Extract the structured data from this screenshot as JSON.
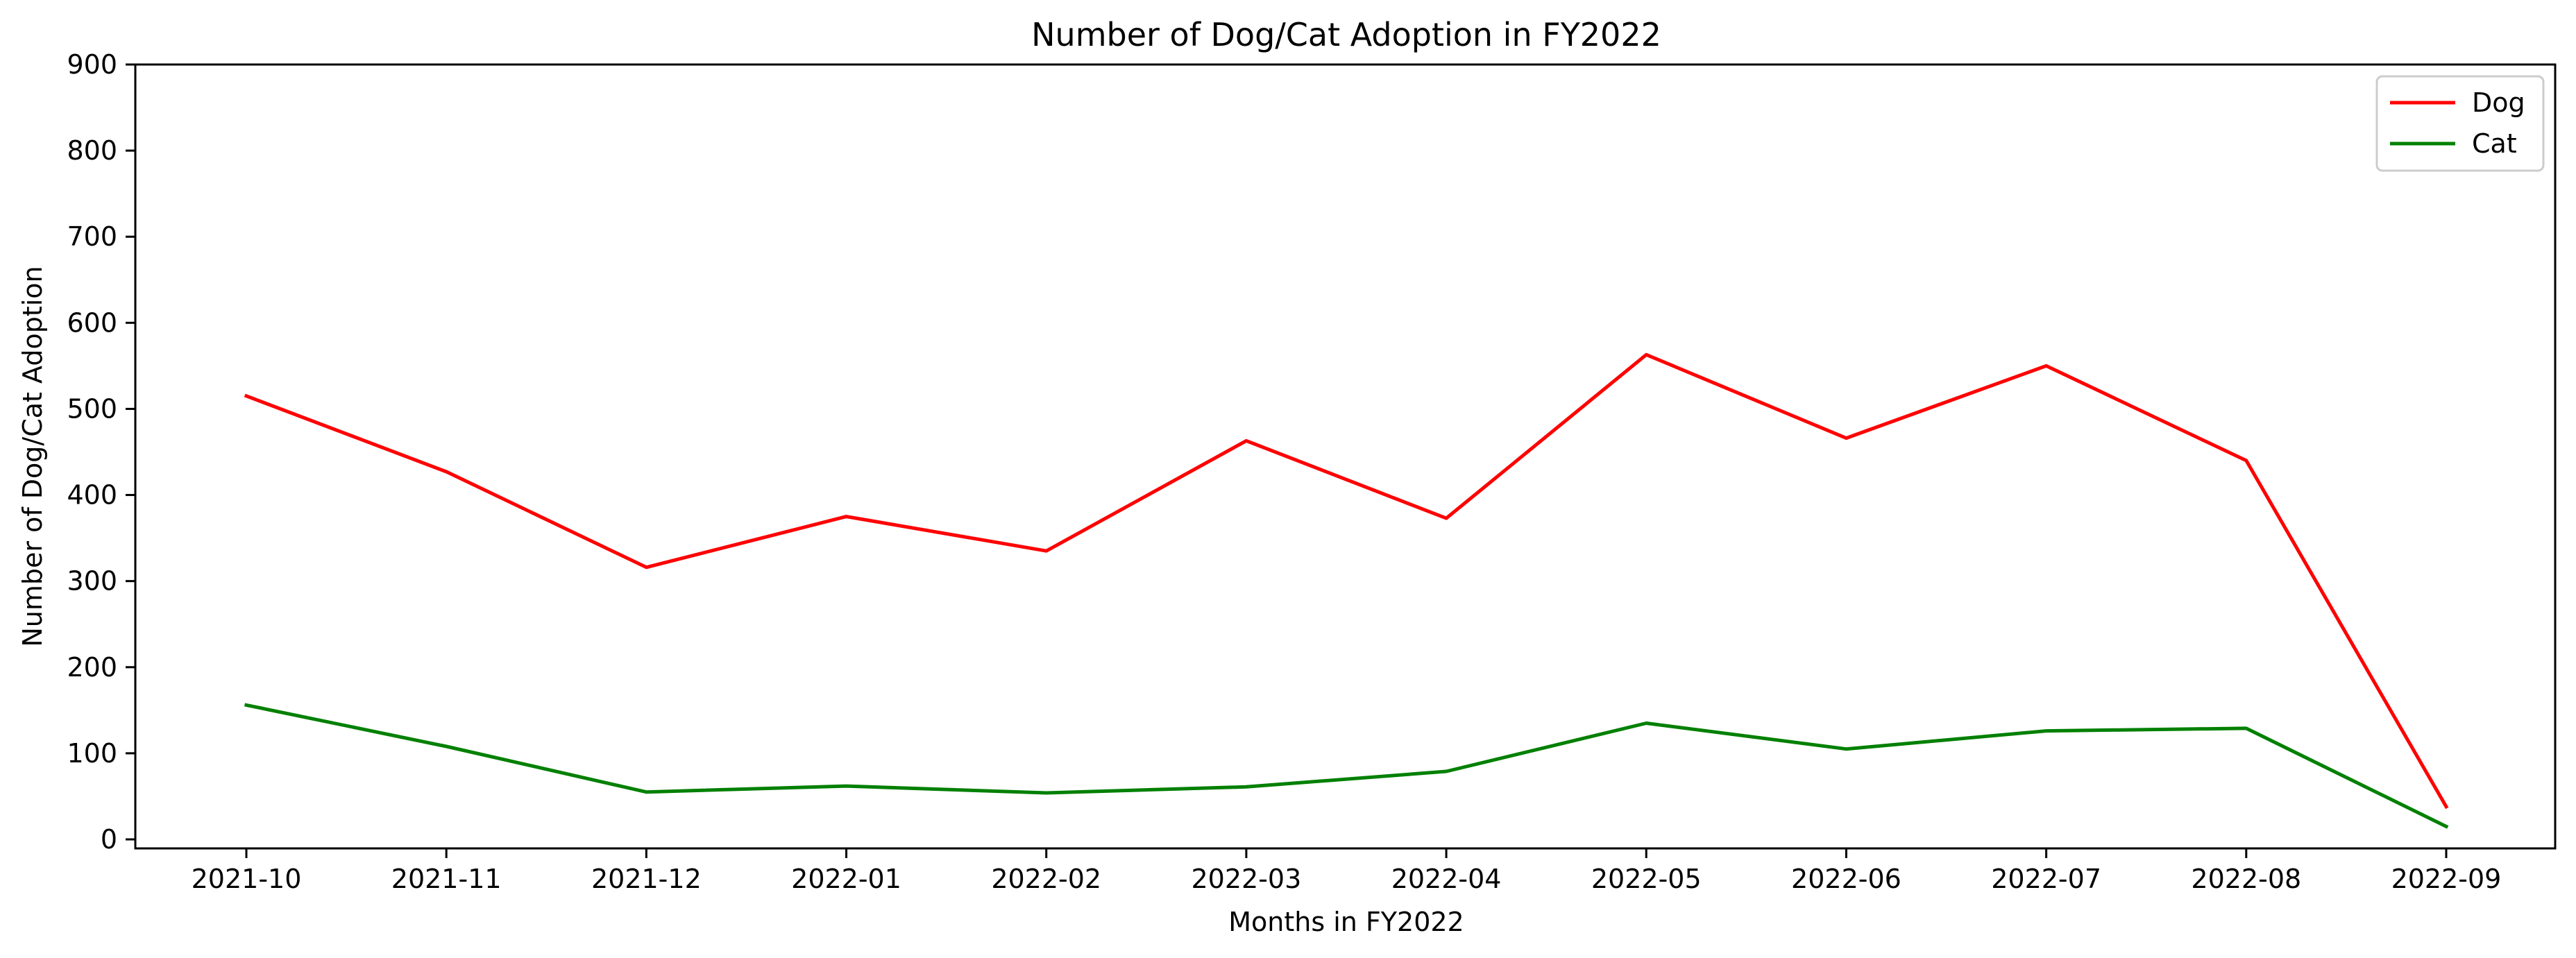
{
  "chart_data": {
    "type": "line",
    "title": "Number of Dog/Cat Adoption in FY2022",
    "xlabel": "Months in FY2022",
    "ylabel": "Number of Dog/Cat Adoption",
    "categories": [
      "2021-10",
      "2021-11",
      "2021-12",
      "2022-01",
      "2022-02",
      "2022-03",
      "2022-04",
      "2022-05",
      "2022-06",
      "2022-07",
      "2022-08",
      "2022-09"
    ],
    "ylim": [
      0,
      900
    ],
    "yticks": [
      0,
      100,
      200,
      300,
      400,
      500,
      600,
      700,
      800,
      900
    ],
    "grid": false,
    "legend_position": "top-right",
    "series": [
      {
        "name": "Dog",
        "color": "#ff0000",
        "values": [
          515,
          427,
          316,
          375,
          335,
          463,
          373,
          563,
          466,
          550,
          440,
          38
        ]
      },
      {
        "name": "Cat",
        "color": "#008000",
        "values": [
          156,
          108,
          55,
          62,
          54,
          61,
          79,
          135,
          105,
          126,
          129,
          15
        ]
      }
    ]
  }
}
